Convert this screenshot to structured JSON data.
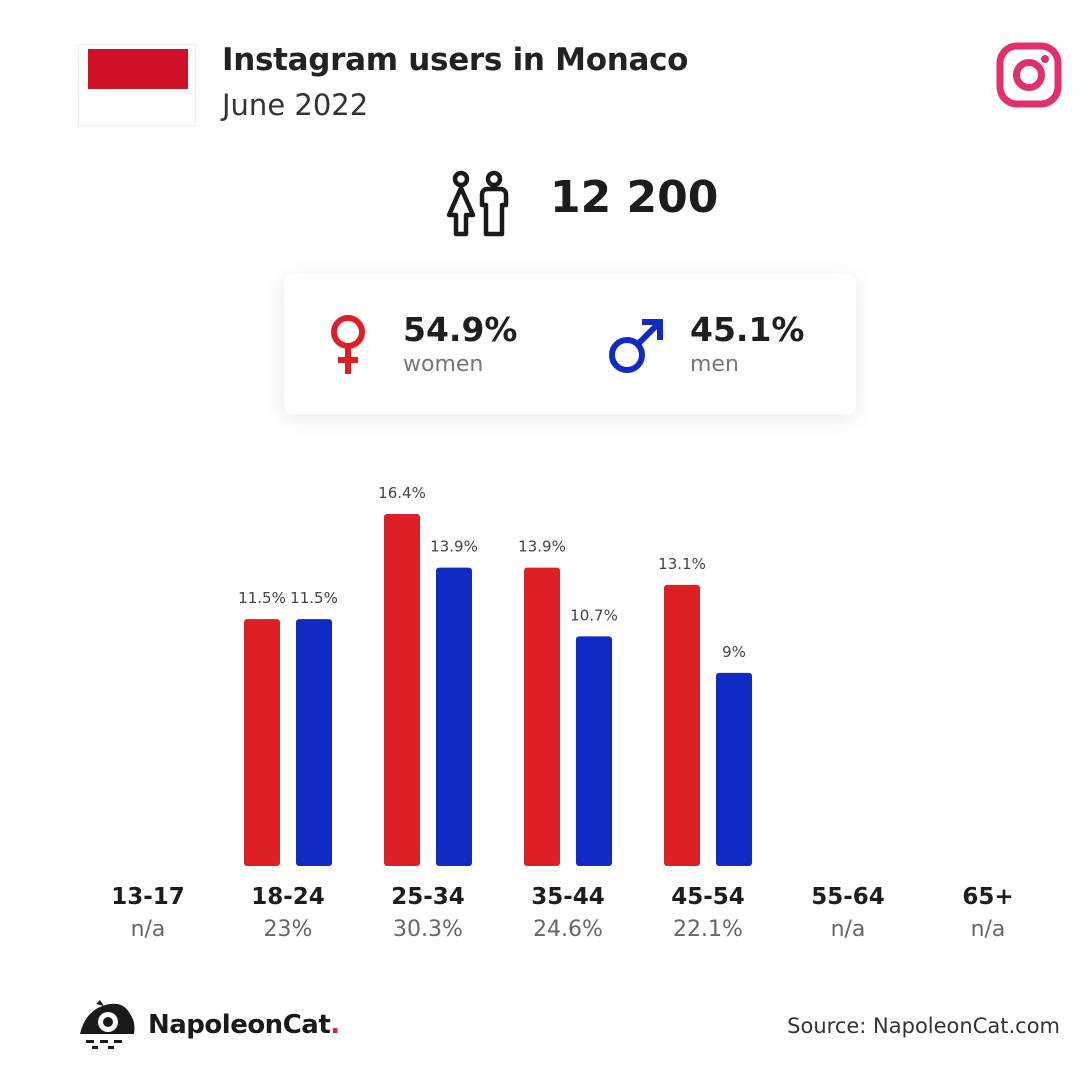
{
  "header": {
    "title": "Instagram users in Monaco",
    "subtitle": "June 2022"
  },
  "colors": {
    "women": "#dd1f26",
    "men": "#0f2bc4",
    "flag_red": "#ce1126",
    "instagram": "#e1306c"
  },
  "icons": {
    "flag": "monaco-flag",
    "brand": "instagram-icon",
    "total": "people-icon",
    "women": "female-symbol-icon",
    "men": "male-symbol-icon",
    "logo": "napoleoncat-logo"
  },
  "summary": {
    "total_users": "12 200",
    "women_pct": "54.9%",
    "women_label": "women",
    "men_pct": "45.1%",
    "men_label": "men"
  },
  "chart_data": {
    "type": "bar",
    "categories": [
      "13-17",
      "18-24",
      "25-34",
      "35-44",
      "45-54",
      "55-64",
      "65+"
    ],
    "category_totals": [
      "n/a",
      "23%",
      "30.3%",
      "24.6%",
      "22.1%",
      "n/a",
      "n/a"
    ],
    "series": [
      {
        "values": [
          null,
          11.5,
          16.4,
          13.9,
          13.1,
          null,
          null
        ],
        "labels": [
          "",
          "11.5%",
          "16.4%",
          "13.9%",
          "13.1%",
          "",
          ""
        ]
      },
      {
        "values": [
          null,
          11.5,
          13.9,
          10.7,
          9,
          null,
          null
        ],
        "labels": [
          "",
          "11.5%",
          "13.9%",
          "10.7%",
          "9%",
          "",
          ""
        ]
      }
    ],
    "title": "",
    "xlabel": "",
    "ylabel": "",
    "ylim": [
      0,
      16.4
    ],
    "grid": false,
    "legend": "none"
  },
  "footer": {
    "brand": "NapoleonCat",
    "brand_dot": ".",
    "source": "Source: NapoleonCat.com"
  }
}
